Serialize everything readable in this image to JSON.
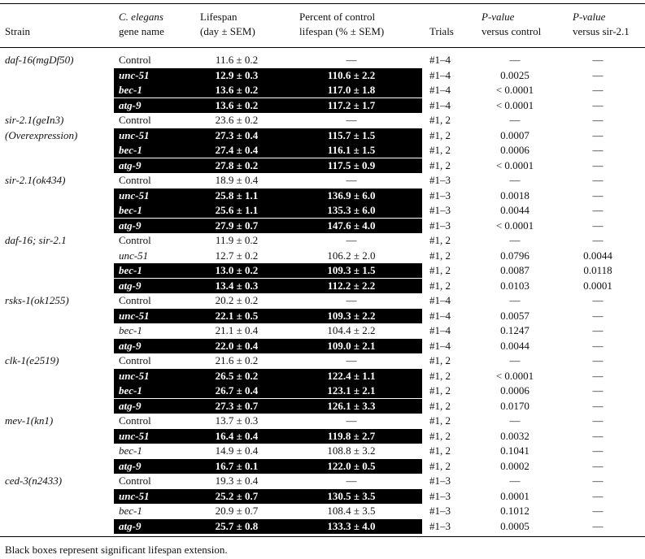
{
  "headers": {
    "strain": "Strain",
    "gene_line1": "C. elegans",
    "gene_line2": "gene name",
    "lifespan_line1": "Lifespan",
    "lifespan_line2": "(day ± SEM)",
    "pct_line1": "Percent of control",
    "pct_line2": "lifespan (% ± SEM)",
    "trials": "Trials",
    "pctl_line1": "P-value",
    "pctl_line2": "versus control",
    "psir_line1": "P-value",
    "psir_line2": "versus sir-2.1"
  },
  "rows": [
    {
      "strain": "daf-16(mgDf50)",
      "gene": "Control",
      "lifespan": "11.6 ± 0.2",
      "pct": "—",
      "trials": "#1–4",
      "p_ctl": "—",
      "p_sir": "—",
      "sig": false
    },
    {
      "strain": "",
      "gene": "unc-51",
      "lifespan": "12.9 ± 0.3",
      "pct": "110.6 ± 2.2",
      "trials": "#1–4",
      "p_ctl": "0.0025",
      "p_sir": "—",
      "sig": true
    },
    {
      "strain": "",
      "gene": "bec-1",
      "lifespan": "13.6 ± 0.2",
      "pct": "117.0 ± 1.8",
      "trials": "#1–4",
      "p_ctl": "< 0.0001",
      "p_sir": "—",
      "sig": true
    },
    {
      "strain": "",
      "gene": "atg-9",
      "lifespan": "13.6 ± 0.2",
      "pct": "117.2 ± 1.7",
      "trials": "#1–4",
      "p_ctl": "< 0.0001",
      "p_sir": "—",
      "sig": true
    },
    {
      "strain": "sir-2.1(geIn3)",
      "gene": "Control",
      "lifespan": "23.6 ± 0.2",
      "pct": "—",
      "trials": "#1, 2",
      "p_ctl": "—",
      "p_sir": "—",
      "sig": false
    },
    {
      "strain": "(Overexpression)",
      "gene": "unc-51",
      "lifespan": "27.3 ± 0.4",
      "pct": "115.7 ± 1.5",
      "trials": "#1, 2",
      "p_ctl": "0.0007",
      "p_sir": "—",
      "sig": true
    },
    {
      "strain": "",
      "gene": "bec-1",
      "lifespan": "27.4 ± 0.4",
      "pct": "116.1 ± 1.5",
      "trials": "#1, 2",
      "p_ctl": "0.0006",
      "p_sir": "—",
      "sig": true
    },
    {
      "strain": "",
      "gene": "atg-9",
      "lifespan": "27.8 ± 0.2",
      "pct": "117.5 ± 0.9",
      "trials": "#1, 2",
      "p_ctl": "< 0.0001",
      "p_sir": "—",
      "sig": true
    },
    {
      "strain": "sir-2.1(ok434)",
      "gene": "Control",
      "lifespan": "18.9 ± 0.4",
      "pct": "—",
      "trials": "#1–3",
      "p_ctl": "—",
      "p_sir": "—",
      "sig": false
    },
    {
      "strain": "",
      "gene": "unc-51",
      "lifespan": "25.8 ± 1.1",
      "pct": "136.9 ± 6.0",
      "trials": "#1–3",
      "p_ctl": "0.0018",
      "p_sir": "—",
      "sig": true
    },
    {
      "strain": "",
      "gene": "bec-1",
      "lifespan": "25.6 ± 1.1",
      "pct": "135.3 ± 6.0",
      "trials": "#1–3",
      "p_ctl": "0.0044",
      "p_sir": "—",
      "sig": true
    },
    {
      "strain": "",
      "gene": "atg-9",
      "lifespan": "27.9 ± 0.7",
      "pct": "147.6 ± 4.0",
      "trials": "#1–3",
      "p_ctl": "< 0.0001",
      "p_sir": "—",
      "sig": true
    },
    {
      "strain": "daf-16; sir-2.1",
      "gene": "Control",
      "lifespan": "11.9 ± 0.2",
      "pct": "—",
      "trials": "#1, 2",
      "p_ctl": "—",
      "p_sir": "—",
      "sig": false
    },
    {
      "strain": "",
      "gene": "unc-51",
      "lifespan": "12.7 ± 0.2",
      "pct": "106.2 ± 2.0",
      "trials": "#1, 2",
      "p_ctl": "0.0796",
      "p_sir": "0.0044",
      "sig": false
    },
    {
      "strain": "",
      "gene": "bec-1",
      "lifespan": "13.0 ± 0.2",
      "pct": "109.3 ± 1.5",
      "trials": "#1, 2",
      "p_ctl": "0.0087",
      "p_sir": "0.0118",
      "sig": true
    },
    {
      "strain": "",
      "gene": "atg-9",
      "lifespan": "13.4 ± 0.3",
      "pct": "112.2 ± 2.2",
      "trials": "#1, 2",
      "p_ctl": "0.0103",
      "p_sir": "0.0001",
      "sig": true
    },
    {
      "strain": "rsks-1(ok1255)",
      "gene": "Control",
      "lifespan": "20.2 ± 0.2",
      "pct": "—",
      "trials": "#1–4",
      "p_ctl": "—",
      "p_sir": "—",
      "sig": false
    },
    {
      "strain": "",
      "gene": "unc-51",
      "lifespan": "22.1 ± 0.5",
      "pct": "109.3 ± 2.2",
      "trials": "#1–4",
      "p_ctl": "0.0057",
      "p_sir": "—",
      "sig": true
    },
    {
      "strain": "",
      "gene": "bec-1",
      "lifespan": "21.1 ± 0.4",
      "pct": "104.4 ± 2.2",
      "trials": "#1–4",
      "p_ctl": "0.1247",
      "p_sir": "—",
      "sig": false
    },
    {
      "strain": "",
      "gene": "atg-9",
      "lifespan": "22.0 ± 0.4",
      "pct": "109.0 ± 2.1",
      "trials": "#1–4",
      "p_ctl": "0.0044",
      "p_sir": "—",
      "sig": true
    },
    {
      "strain": "clk-1(e2519)",
      "gene": "Control",
      "lifespan": "21.6 ± 0.2",
      "pct": "—",
      "trials": "#1, 2",
      "p_ctl": "—",
      "p_sir": "—",
      "sig": false
    },
    {
      "strain": "",
      "gene": "unc-51",
      "lifespan": "26.5 ± 0.2",
      "pct": "122.4 ± 1.1",
      "trials": "#1, 2",
      "p_ctl": "< 0.0001",
      "p_sir": "—",
      "sig": true
    },
    {
      "strain": "",
      "gene": "bec-1",
      "lifespan": "26.7 ± 0.4",
      "pct": "123.1 ± 2.1",
      "trials": "#1, 2",
      "p_ctl": "0.0006",
      "p_sir": "—",
      "sig": true
    },
    {
      "strain": "",
      "gene": "atg-9",
      "lifespan": "27.3 ± 0.7",
      "pct": "126.1 ± 3.3",
      "trials": "#1, 2",
      "p_ctl": "0.0170",
      "p_sir": "—",
      "sig": true
    },
    {
      "strain": "mev-1(kn1)",
      "gene": "Control",
      "lifespan": "13.7 ± 0.3",
      "pct": "—",
      "trials": "#1, 2",
      "p_ctl": "—",
      "p_sir": "—",
      "sig": false
    },
    {
      "strain": "",
      "gene": "unc-51",
      "lifespan": "16.4 ± 0.4",
      "pct": "119.8 ± 2.7",
      "trials": "#1, 2",
      "p_ctl": "0.0032",
      "p_sir": "—",
      "sig": true
    },
    {
      "strain": "",
      "gene": "bec-1",
      "lifespan": "14.9 ± 0.4",
      "pct": "108.8 ± 3.2",
      "trials": "#1, 2",
      "p_ctl": "0.1041",
      "p_sir": "—",
      "sig": false
    },
    {
      "strain": "",
      "gene": "atg-9",
      "lifespan": "16.7 ± 0.1",
      "pct": "122.0 ± 0.5",
      "trials": "#1, 2",
      "p_ctl": "0.0002",
      "p_sir": "—",
      "sig": true
    },
    {
      "strain": "ced-3(n2433)",
      "gene": "Control",
      "lifespan": "19.3 ± 0.4",
      "pct": "—",
      "trials": "#1–3",
      "p_ctl": "—",
      "p_sir": "—",
      "sig": false
    },
    {
      "strain": "",
      "gene": "unc-51",
      "lifespan": "25.2 ± 0.7",
      "pct": "130.5 ± 3.5",
      "trials": "#1–3",
      "p_ctl": "0.0001",
      "p_sir": "—",
      "sig": true
    },
    {
      "strain": "",
      "gene": "bec-1",
      "lifespan": "20.9 ± 0.7",
      "pct": "108.4 ± 3.5",
      "trials": "#1–3",
      "p_ctl": "0.1012",
      "p_sir": "—",
      "sig": false
    },
    {
      "strain": "",
      "gene": "atg-9",
      "lifespan": "25.7 ± 0.8",
      "pct": "133.3 ± 4.0",
      "trials": "#1–3",
      "p_ctl": "0.0005",
      "p_sir": "—",
      "sig": true
    }
  ],
  "footnote": "Black boxes represent significant lifespan extension.",
  "colors": {
    "significant_box": "#000000",
    "significant_text": "#ffffff",
    "text": "#111111"
  }
}
